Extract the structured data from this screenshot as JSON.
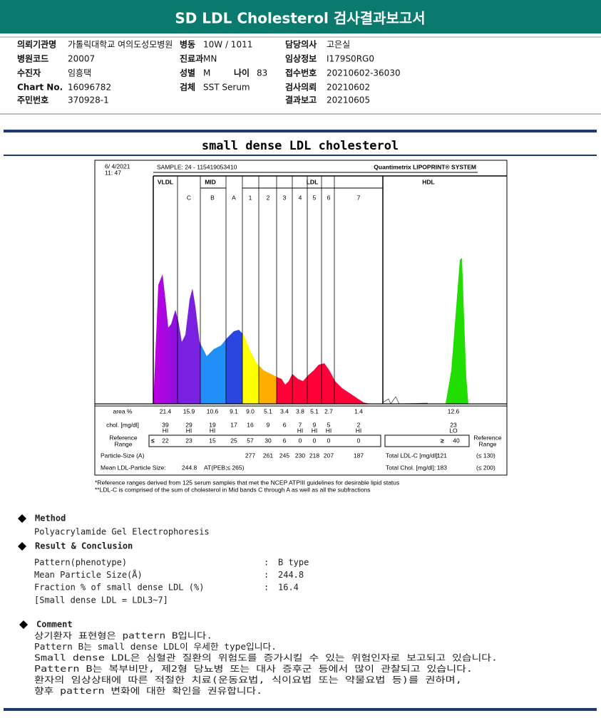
{
  "header": {
    "title": "SD LDL Cholesterol 검사결과보고서"
  },
  "info": [
    {
      "label": "의뢰기관명",
      "value": "가톨릭대학교 여의도성모병원"
    },
    {
      "label": "병동",
      "value": "10W / 1011"
    },
    {
      "label": "담당의사",
      "value": "고은실"
    },
    {
      "label": "병원코드",
      "value": "20007"
    },
    {
      "label": "진료과",
      "value": "MN"
    },
    {
      "label": "임상정보",
      "value": "I179S0RG0"
    },
    {
      "label": "수진자",
      "value": "임흥택"
    },
    {
      "label": "성별",
      "value": "M"
    },
    {
      "label": "나이",
      "value": "83"
    },
    {
      "label": "접수번호",
      "value": "20210602-36030"
    },
    {
      "label": "Chart No.",
      "value": "16096782"
    },
    {
      "label": "검체",
      "value": "SST Serum"
    },
    {
      "label": "검사의뢰",
      "value": "20210602"
    },
    {
      "label": "주민번호",
      "value": "370928-1"
    },
    {
      "label": "결과보고",
      "value": "20210605"
    }
  ],
  "report": {
    "title": "small dense LDL cholesterol",
    "date": "6/ 4/2021",
    "time": "11: 47",
    "sample": "SAMPLE:  24 - 115419053410",
    "brand": "Quantimetrix LIPOPRINT® SYSTEM",
    "groups": [
      "VLDL",
      "MID",
      "LDL",
      "HDL"
    ],
    "bands": [
      "C",
      "B",
      "A",
      "1",
      "2",
      "3",
      "4",
      "5",
      "6",
      "7"
    ],
    "row_labels": {
      "area": "area %",
      "chol": "chol. [mg/dl]",
      "ref1": "Reference",
      "ref2": "Range",
      "size": "Particle-Size (A)",
      "mean": "Mean LDL-Particle Size:"
    },
    "area": [
      "21.4",
      "15.9",
      "10.6",
      "9.1",
      "9.0",
      "5.1",
      "3.4",
      "3.8",
      "5.1",
      "2.7",
      "1.4",
      "12.6"
    ],
    "chol": [
      "39",
      "29",
      "19",
      "17",
      "16",
      "9",
      "6",
      "7",
      "9",
      "5",
      "2",
      "23"
    ],
    "flags": [
      "HI",
      "HI",
      "HI",
      null,
      null,
      null,
      null,
      "HI",
      "HI",
      "HI",
      "HI",
      "LO"
    ],
    "ref_le": "≤",
    "ref_ge": "≥",
    "ref": [
      "22",
      "23",
      "15",
      "25",
      "57",
      "30",
      "6",
      "0",
      "0",
      "0",
      "0",
      "40"
    ],
    "size": [
      null,
      null,
      null,
      null,
      "277",
      "261",
      "245",
      "230",
      "218",
      "207",
      "187",
      null
    ],
    "mean_value": "244.8",
    "mean_note": "AT(PEB;≤ 265)",
    "totals": [
      {
        "label": "Total LDL-C [mg/dl]:",
        "value": "121",
        "limit": "(≤ 130)"
      },
      {
        "label": "Total Chol. [mg/dl]:",
        "value": "183",
        "limit": "(≤ 200)"
      }
    ],
    "footnotes": [
      "*Reference ranges derived from 125 serum samples that met the NCEP ATPIII guidelines for desirable lipid status",
      "**LDL-C is comprised of the sum of cholesterol in Mid bands C through A as well as all the subfractions"
    ]
  },
  "method": {
    "title": "Method",
    "text": "Polyacrylamide Gel Electrophoresis"
  },
  "result": {
    "title": "Result & Conclusion",
    "items": [
      {
        "label": "Pattern(phenotype)",
        "sep": ":",
        "value": "B type"
      },
      {
        "label": "Mean Particle Size(Å)",
        "sep": ":",
        "value": "244.8"
      },
      {
        "label": "Fraction % of small dense LDL (%)",
        "sep": ":",
        "value": "16.4"
      }
    ],
    "note": "[Small dense LDL = LDL3~7]"
  },
  "comment": {
    "title": "Comment",
    "lines": [
      "상기환자 표현형은 pattern B입니다.",
      "Pattern B는 small dense LDL이 우세한 type입니다.",
      "Small dense LDL은 심혈관 질환의 위험도를 증가시킬 수 있는 위험인자로 보고되고 있습니다.",
      "Pattern B는 복부비만, 제2형 당뇨병 또는 대사 증후군 등에서 많이 관찰되고 있습니다.",
      "환자의 임상상태에 따른 적절한 치료(운동요법, 식이요법 또는 약물요법 등)를 권하며,",
      "향후 pattern 변화에 대한 확인을 권유합니다."
    ]
  }
}
